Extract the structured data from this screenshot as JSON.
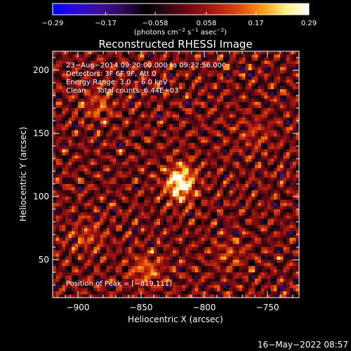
{
  "colorbar": {
    "ticks": [
      {
        "value": -0.29,
        "label": "−0.29"
      },
      {
        "value": -0.17,
        "label": "−0.17"
      },
      {
        "value": -0.058,
        "label": "−0.058"
      },
      {
        "value": 0.058,
        "label": "0.058"
      },
      {
        "value": 0.17,
        "label": "0.17"
      },
      {
        "value": 0.29,
        "label": "0.29"
      }
    ],
    "range": [
      -0.29,
      0.29
    ],
    "units_main": "(photons cm",
    "units_exp1": "−2",
    "units_mid": " s",
    "units_exp2": "−1",
    "units_mid2": " asec",
    "units_exp3": "−2",
    "units_end": ")",
    "colors": [
      "#0000ff",
      "#2a0ad8",
      "#3c0f9e",
      "#2e0a58",
      "#000000",
      "#3a0810",
      "#7a0a14",
      "#b01e10",
      "#e0480a",
      "#ff9a10",
      "#fff080",
      "#ffffff"
    ]
  },
  "chart_data": {
    "type": "heatmap",
    "title": "Reconstructed RHESSI Image",
    "xlabel": "Heliocentric X (arcsec)",
    "ylabel": "Heliocentric Y (arcsec)",
    "xlim": [
      -920,
      -725
    ],
    "ylim": [
      20,
      215
    ],
    "x_ticks": [
      {
        "value": -900,
        "label": "−900"
      },
      {
        "value": -850,
        "label": "−850"
      },
      {
        "value": -800,
        "label": "−800"
      },
      {
        "value": -750,
        "label": "−750"
      }
    ],
    "y_ticks": [
      {
        "value": 50,
        "label": "50"
      },
      {
        "value": 100,
        "label": "100"
      },
      {
        "value": 150,
        "label": "150"
      },
      {
        "value": 200,
        "label": "200"
      }
    ],
    "peak": {
      "x": -819,
      "y": 111,
      "intensity": 0.29
    },
    "secondary_sources": [
      {
        "x": -846,
        "y": 42,
        "intensity": 0.12
      },
      {
        "x": -884,
        "y": 172,
        "intensity": 0.09
      },
      {
        "x": -893,
        "y": 68,
        "intensity": 0.08
      },
      {
        "x": -780,
        "y": 55,
        "intensity": 0.07
      },
      {
        "x": -760,
        "y": 150,
        "intensity": 0.06
      }
    ],
    "annotations": {
      "line1": "23−Aug−2014 09:20:00.000 to 09:22:56.000",
      "line2": "Detectors: 3F 6F 9F, Att 0",
      "line3": "Energy Range: 3.0 − 6.0 keV",
      "line4": "Clean     Total counts: 6.44E+03",
      "peak_label": "Position of Peak = [−819,111]"
    }
  },
  "footer": {
    "date": "16−May−2022 08:57"
  }
}
